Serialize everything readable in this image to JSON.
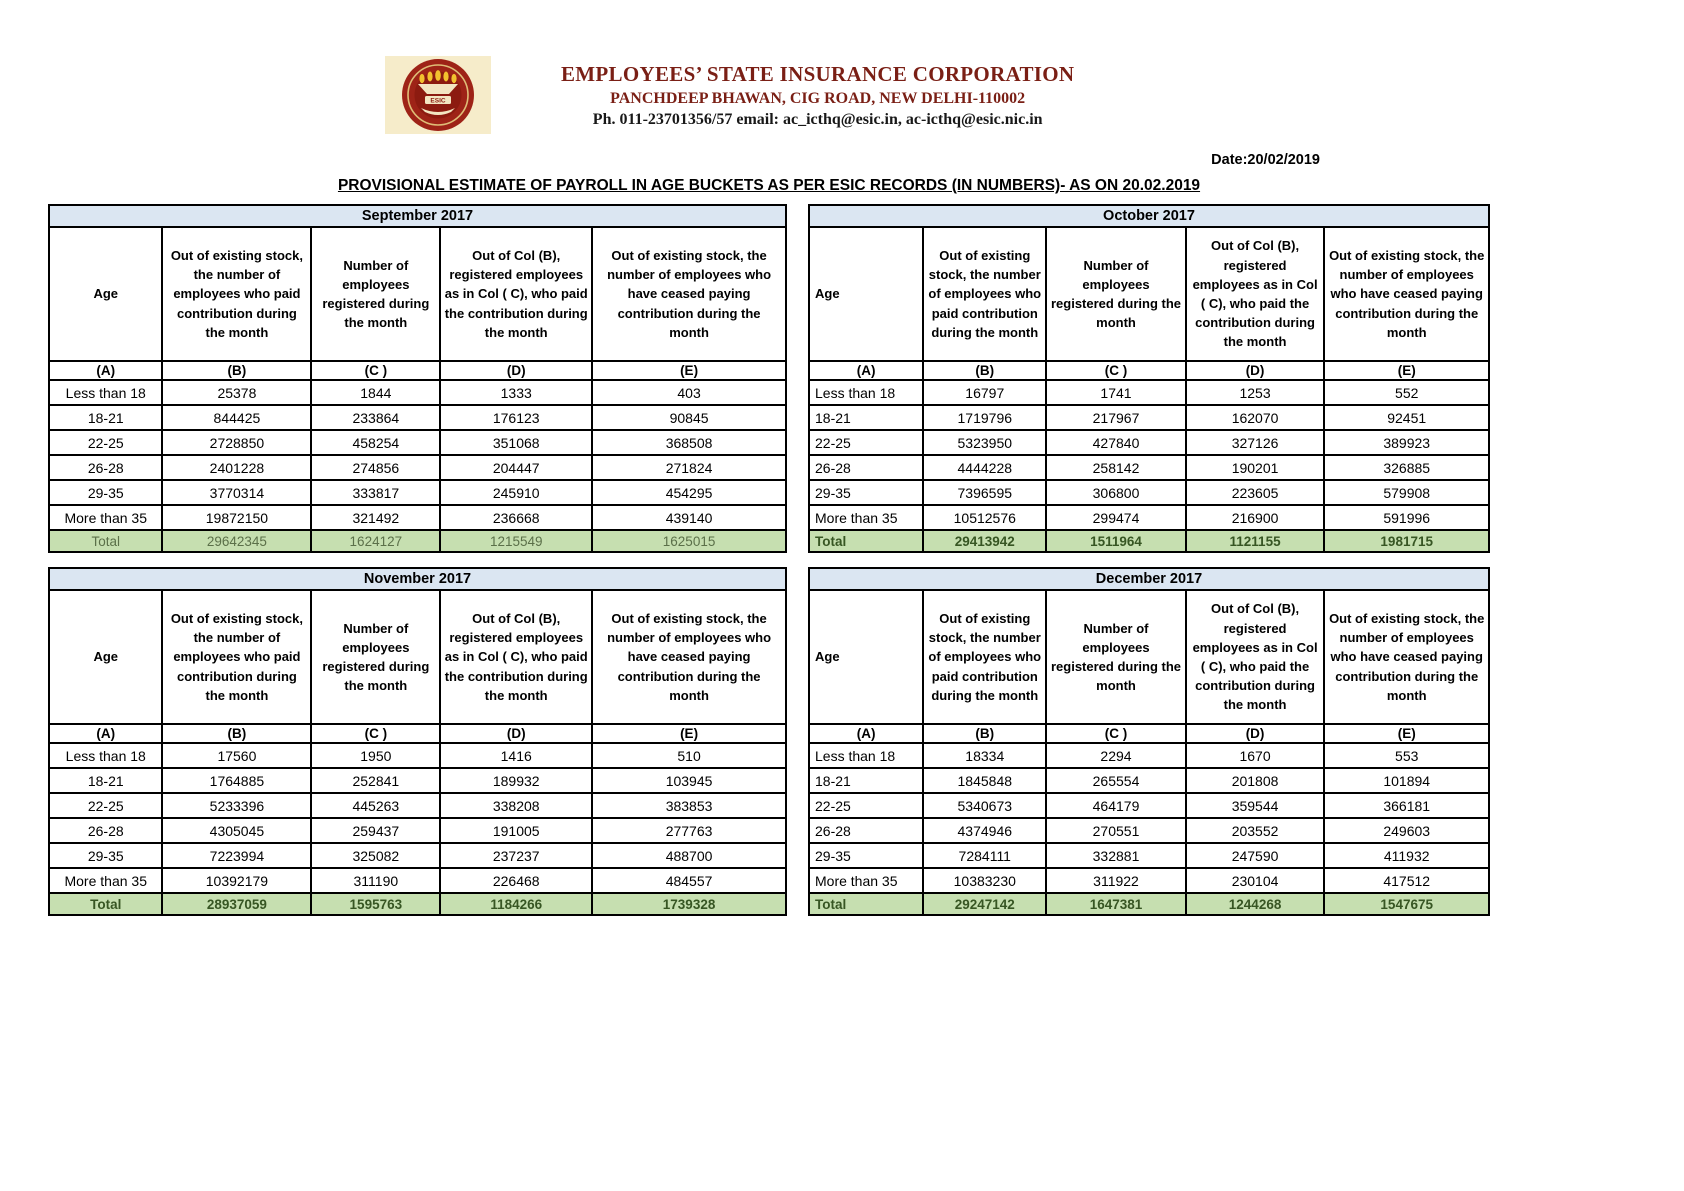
{
  "page": {
    "org_name": "EMPLOYEES’ STATE INSURANCE CORPORATION",
    "org_address": "PANCHDEEP BHAWAN, CIG ROAD, NEW DELHI-110002",
    "org_contact": "Ph. 011-23701356/57 email: ac_icthq@esic.in, ac-icthq@esic.nic.in",
    "date_label": "Date:20/02/2019",
    "title": "PROVISIONAL ESTIMATE OF PAYROLL IN AGE BUCKETS AS PER ESIC RECORDS (IN NUMBERS)- AS ON 20.02.2019",
    "logo_label": "ESIC"
  },
  "colors": {
    "month_header_bg": "#dbe6f2",
    "total_row_bg": "#c6dfb0",
    "total_text_dark": "#375623",
    "total_text_soft": "#5b7049",
    "brand_maroon": "#7a1f15",
    "logo_seal": "#9e2317",
    "logo_flame": "#f2c12e"
  },
  "columns": {
    "descriptions": [
      "Age",
      "Out of existing stock, the number of employees who paid contribution during the month",
      "Number of employees registered during the month",
      "Out of Col (B), registered employees as in Col ( C), who paid the contribution during the month",
      "Out of existing stock, the number of employees who have ceased paying contribution during the month"
    ],
    "letters": [
      "(A)",
      "(B)",
      "(C )",
      "(D)",
      "(E)"
    ]
  },
  "tables": [
    {
      "month": "September 2017",
      "rows": [
        [
          "Less than 18",
          "25378",
          "1844",
          "1333",
          "403"
        ],
        [
          "18-21",
          "844425",
          "233864",
          "176123",
          "90845"
        ],
        [
          "22-25",
          "2728850",
          "458254",
          "351068",
          "368508"
        ],
        [
          "26-28",
          "2401228",
          "274856",
          "204447",
          "271824"
        ],
        [
          "29-35",
          "3770314",
          "333817",
          "245910",
          "454295"
        ],
        [
          "More than 35",
          "19872150",
          "321492",
          "236668",
          "439140"
        ]
      ],
      "total_row": [
        "Total",
        "29642345",
        "1624127",
        "1215549",
        "1625015"
      ]
    },
    {
      "month": "October 2017",
      "rows": [
        [
          "Less than 18",
          "16797",
          "1741",
          "1253",
          "552"
        ],
        [
          "18-21",
          "1719796",
          "217967",
          "162070",
          "92451"
        ],
        [
          "22-25",
          "5323950",
          "427840",
          "327126",
          "389923"
        ],
        [
          "26-28",
          "4444228",
          "258142",
          "190201",
          "326885"
        ],
        [
          "29-35",
          "7396595",
          "306800",
          "223605",
          "579908"
        ],
        [
          "More than 35",
          "10512576",
          "299474",
          "216900",
          "591996"
        ]
      ],
      "total_row": [
        "Total",
        "29413942",
        "1511964",
        "1121155",
        "1981715"
      ]
    },
    {
      "month": "November 2017",
      "rows": [
        [
          "Less than 18",
          "17560",
          "1950",
          "1416",
          "510"
        ],
        [
          "18-21",
          "1764885",
          "252841",
          "189932",
          "103945"
        ],
        [
          "22-25",
          "5233396",
          "445263",
          "338208",
          "383853"
        ],
        [
          "26-28",
          "4305045",
          "259437",
          "191005",
          "277763"
        ],
        [
          "29-35",
          "7223994",
          "325082",
          "237237",
          "488700"
        ],
        [
          "More than 35",
          "10392179",
          "311190",
          "226468",
          "484557"
        ]
      ],
      "total_row": [
        "Total",
        "28937059",
        "1595763",
        "1184266",
        "1739328"
      ]
    },
    {
      "month": "December 2017",
      "rows": [
        [
          "Less than 18",
          "18334",
          "2294",
          "1670",
          "553"
        ],
        [
          "18-21",
          "1845848",
          "265554",
          "201808",
          "101894"
        ],
        [
          "22-25",
          "5340673",
          "464179",
          "359544",
          "366181"
        ],
        [
          "26-28",
          "4374946",
          "270551",
          "203552",
          "249603"
        ],
        [
          "29-35",
          "7284111",
          "332881",
          "247590",
          "411932"
        ],
        [
          "More than 35",
          "10383230",
          "311922",
          "230104",
          "417512"
        ]
      ],
      "total_row": [
        "Total",
        "29247142",
        "1647381",
        "1244268",
        "1547675"
      ]
    }
  ]
}
